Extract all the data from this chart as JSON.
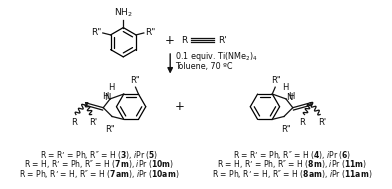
{
  "bg_color": "#ffffff",
  "text_color": "#111111",
  "condition_line1": "0.1 equiv. Ti(NMe$_2$)$_4$",
  "condition_line2": "Toluene, 70 ºC",
  "footnote_left_line1": "R = R’ = Ph, R″ = H ($\\mathbf{3}$), $i$Pr ($\\mathbf{5}$)",
  "footnote_left_line2": "R = H, R’ = Ph, R″ = H ($\\mathbf{7m}$), $i$Pr ($\\mathbf{10m}$)",
  "footnote_left_line3": "R = Ph, R’ = H, R″ = H ($\\mathbf{7am}$), $i$Pr ($\\mathbf{10am}$)",
  "footnote_right_line1": "R = R’ = Ph, R″ = H ($\\mathbf{4}$), $i$Pr ($\\mathbf{6}$)",
  "footnote_right_line2": "R = H, R’ = Ph, R″ = H ($\\mathbf{8m}$), $i$Pr ($\\mathbf{11m}$)",
  "footnote_right_line3": "R = Ph, R’ = H, R″ = H ($\\mathbf{8am}$), $i$Pr ($\\mathbf{11am}$)",
  "font_size_label": 6.5,
  "font_size_small": 5.8,
  "font_size_footnote": 5.5
}
